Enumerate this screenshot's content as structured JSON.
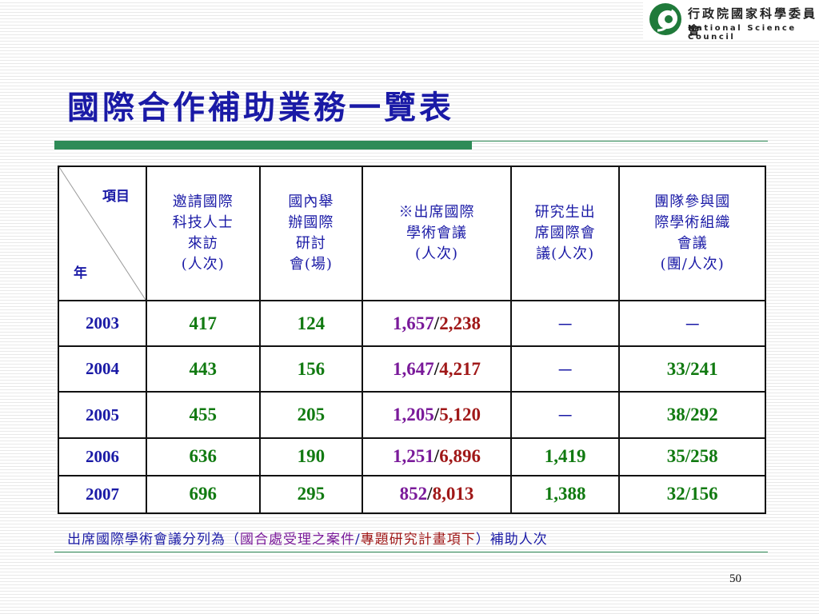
{
  "logo": {
    "org_zh": "行政院國家科學委員會",
    "org_en": "National Science Council",
    "colors": {
      "green": "#1f7a3a"
    }
  },
  "title": "國際合作補助業務一覽表",
  "table": {
    "corner_item": "項目",
    "corner_year": "年",
    "headers": [
      {
        "lines": [
          "邀請國際",
          "科技人士",
          "來訪",
          "(人次)"
        ]
      },
      {
        "lines": [
          "國內舉",
          "辦國際",
          "研討",
          "會(場)"
        ]
      },
      {
        "lines": [
          "※出席國際",
          "學術會議",
          "(人次)"
        ]
      },
      {
        "lines": [
          "研究生出",
          "席國際會",
          "議(人次)"
        ]
      },
      {
        "lines": [
          "團隊參與國",
          "際學術組織",
          "會議",
          "(團/人次)"
        ]
      }
    ],
    "rows": [
      {
        "year": "2003",
        "visitors": "417",
        "conferences": "124",
        "attend_a": "1,657",
        "attend_b": "2,238",
        "grad": "－",
        "team": "－"
      },
      {
        "year": "2004",
        "visitors": "443",
        "conferences": "156",
        "attend_a": "1,647",
        "attend_b": "4,217",
        "grad": "－",
        "team": "33/241"
      },
      {
        "year": "2005",
        "visitors": "455",
        "conferences": "205",
        "attend_a": "1,205",
        "attend_b": "5,120",
        "grad": "－",
        "team": "38/292"
      },
      {
        "year": "2006",
        "visitors": "636",
        "conferences": "190",
        "attend_a": "1,251",
        "attend_b": "6,896",
        "grad": "1,419",
        "team": "35/258"
      },
      {
        "year": "2007",
        "visitors": "696",
        "conferences": "295",
        "attend_a": "852",
        "attend_b": "8,013",
        "grad": "1,388",
        "team": "32/156"
      }
    ]
  },
  "footnote": {
    "prefix": "出席國際學術會議分列為（",
    "part_a": "國合處受理之案件",
    "separator": "/",
    "part_b": "專題研究計畫項下",
    "suffix": "）補助人次"
  },
  "page_number": "50",
  "colors": {
    "title": "#1a1aa6",
    "accent_green": "#2e8b57",
    "value_green": "#117a11",
    "value_purple": "#7a1a9a",
    "value_red": "#a01818"
  }
}
